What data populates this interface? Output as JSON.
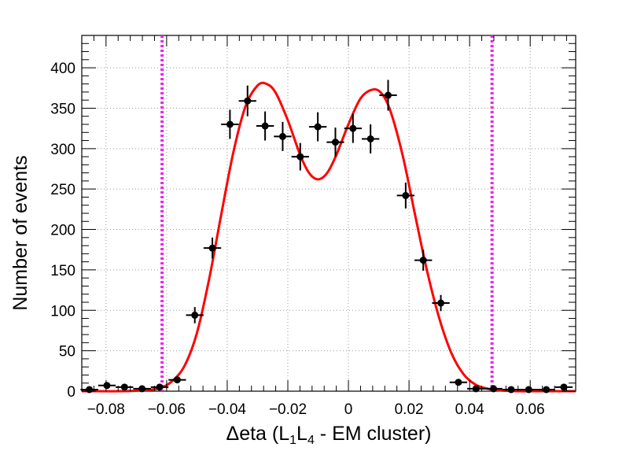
{
  "chart_data": {
    "type": "scatter",
    "xlabel_parts": {
      "prefix": "Δeta (L",
      "sub1": "1",
      "mid": "L",
      "sub2": "4",
      "suffix": " - EM cluster)"
    },
    "ylabel": "Number of events",
    "xlim": [
      -0.088,
      0.075
    ],
    "ylim": [
      0,
      440
    ],
    "grid": true,
    "x_ticks": [
      -0.08,
      -0.06,
      -0.04,
      -0.02,
      0,
      0.02,
      0.04,
      0.06
    ],
    "x_tick_labels": [
      "−0.08",
      "−0.06",
      "−0.04",
      "−0.02",
      "0",
      "0.02",
      "0.04",
      "0.06"
    ],
    "y_ticks": [
      0,
      50,
      100,
      150,
      200,
      250,
      300,
      350,
      400
    ],
    "y_tick_labels": [
      "0",
      "50",
      "100",
      "150",
      "200",
      "250",
      "300",
      "350",
      "400"
    ],
    "bin_half_width": 0.0029,
    "points": [
      {
        "x": -0.0855,
        "y": 2,
        "err": 2
      },
      {
        "x": -0.0797,
        "y": 7,
        "err": 3
      },
      {
        "x": -0.0739,
        "y": 5,
        "err": 2
      },
      {
        "x": -0.0681,
        "y": 3,
        "err": 2
      },
      {
        "x": -0.0623,
        "y": 5,
        "err": 2
      },
      {
        "x": -0.0565,
        "y": 14,
        "err": 4
      },
      {
        "x": -0.0507,
        "y": 94,
        "err": 10
      },
      {
        "x": -0.0449,
        "y": 177,
        "err": 13
      },
      {
        "x": -0.0391,
        "y": 330,
        "err": 18
      },
      {
        "x": -0.0333,
        "y": 359,
        "err": 19
      },
      {
        "x": -0.0275,
        "y": 328,
        "err": 18
      },
      {
        "x": -0.0217,
        "y": 315,
        "err": 18
      },
      {
        "x": -0.0159,
        "y": 290,
        "err": 17
      },
      {
        "x": -0.0101,
        "y": 327,
        "err": 18
      },
      {
        "x": -0.0043,
        "y": 308,
        "err": 18
      },
      {
        "x": 0.0015,
        "y": 325,
        "err": 18
      },
      {
        "x": 0.0073,
        "y": 312,
        "err": 18
      },
      {
        "x": 0.0131,
        "y": 366,
        "err": 19
      },
      {
        "x": 0.0189,
        "y": 242,
        "err": 16
      },
      {
        "x": 0.0247,
        "y": 162,
        "err": 13
      },
      {
        "x": 0.0305,
        "y": 109,
        "err": 10
      },
      {
        "x": 0.0363,
        "y": 11,
        "err": 3
      },
      {
        "x": 0.0421,
        "y": 3,
        "err": 2
      },
      {
        "x": 0.0479,
        "y": 3,
        "err": 2
      },
      {
        "x": 0.0537,
        "y": 2,
        "err": 1
      },
      {
        "x": 0.0595,
        "y": 2,
        "err": 1
      },
      {
        "x": 0.0653,
        "y": 2,
        "err": 1
      },
      {
        "x": 0.0711,
        "y": 5,
        "err": 2
      }
    ],
    "fit_curve": {
      "color": "#ff0000",
      "x": [
        -0.088,
        -0.075,
        -0.068,
        -0.062,
        -0.058,
        -0.054,
        -0.05,
        -0.046,
        -0.042,
        -0.038,
        -0.034,
        -0.03,
        -0.027,
        -0.024,
        -0.02,
        -0.016,
        -0.013,
        -0.01,
        -0.007,
        -0.004,
        0,
        0.004,
        0.008,
        0.011,
        0.014,
        0.018,
        0.022,
        0.026,
        0.03,
        0.034,
        0.038,
        0.042,
        0.046,
        0.05,
        0.056,
        0.062,
        0.068,
        0.075
      ],
      "y": [
        0,
        0,
        1,
        4,
        13,
        32,
        72,
        138,
        218,
        295,
        352,
        378,
        380,
        369,
        335,
        293,
        270,
        262,
        270,
        292,
        330,
        362,
        373,
        368,
        345,
        290,
        218,
        148,
        90,
        47,
        21,
        8,
        3,
        1,
        0,
        0,
        0,
        0
      ]
    },
    "cut_lines": {
      "color": "#ee22ee",
      "x": [
        -0.0615,
        0.0474
      ]
    }
  }
}
